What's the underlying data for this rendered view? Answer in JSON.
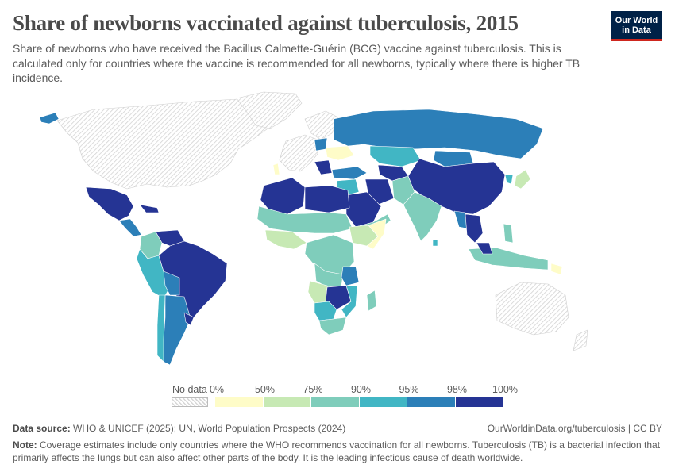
{
  "title": "Share of newborns vaccinated against tuberculosis, 2015",
  "subtitle": "Share of newborns who have received the Bacillus Calmette-Guérin (BCG) vaccine against tuberculosis. This is calculated only for countries where the vaccine is recommended for all newborns, typically where there is higher TB incidence.",
  "logo": {
    "line1": "Our World",
    "line2": "in Data"
  },
  "legend": {
    "no_data_label": "No data",
    "ticks": [
      "0%",
      "50%",
      "75%",
      "90%",
      "95%",
      "98%",
      "100%"
    ],
    "bins": [
      {
        "from": "0%",
        "to": "50%",
        "color": "#fefcc8"
      },
      {
        "from": "50%",
        "to": "75%",
        "color": "#c7e9b4"
      },
      {
        "from": "75%",
        "to": "90%",
        "color": "#7fcdbb"
      },
      {
        "from": "90%",
        "to": "95%",
        "color": "#41b6c4"
      },
      {
        "from": "95%",
        "to": "98%",
        "color": "#2c7fb8"
      },
      {
        "from": "98%",
        "to": "100%",
        "color": "#253494"
      }
    ]
  },
  "footer": {
    "source_label": "Data source:",
    "source_text": " WHO & UNICEF (2025); UN, World Population Prospects (2024)",
    "url": "OurWorldinData.org/tuberculosis | CC BY",
    "note_label": "Note:",
    "note_text": " Coverage estimates include only countries where the WHO recommends vaccination for all newborns. Tuberculosis (TB) is a bacterial infection that primarily affects the lungs but can also affect other parts of the body. It is the leading infectious cause of death worldwide."
  },
  "colors": {
    "no_data": "#e8e8e8",
    "border": "#ffffff"
  }
}
